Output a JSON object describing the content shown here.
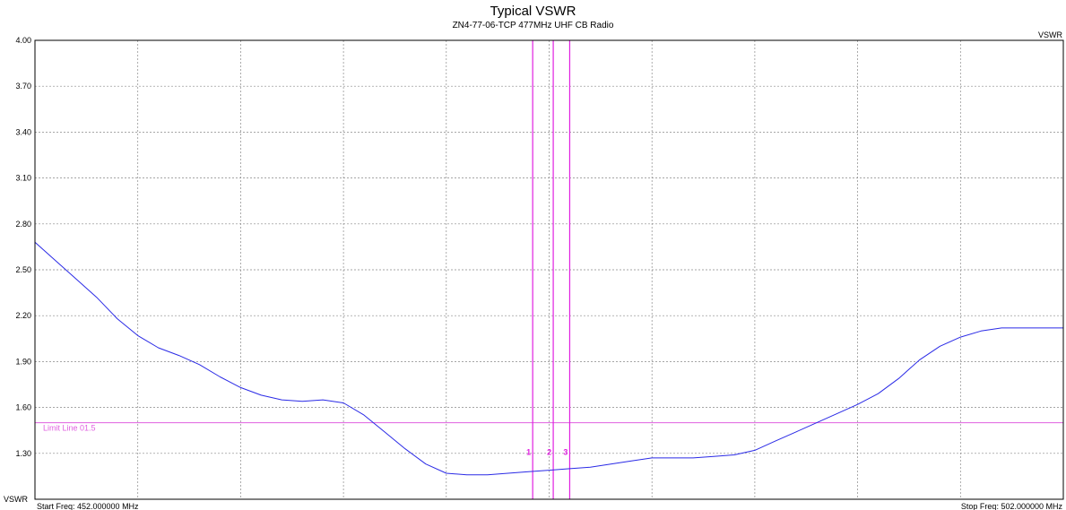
{
  "chart_data": {
    "type": "line",
    "title": "Typical VSWR",
    "subtitle": "ZN4-77-06-TCP 477MHz UHF CB Radio",
    "ylabel_top": "VSWR",
    "ylabel_bottom": "VSWR",
    "start_freq_label": "Start Freq: 452.000000 MHz",
    "stop_freq_label": "Stop Freq: 502.000000 MHz",
    "xlim": [
      452,
      502
    ],
    "ylim": [
      1.0,
      4.0
    ],
    "yticks": [
      "4.00",
      "3.70",
      "3.40",
      "3.10",
      "2.80",
      "2.50",
      "2.20",
      "1.90",
      "1.60",
      "1.30"
    ],
    "ytick_values": [
      4.0,
      3.7,
      3.4,
      3.1,
      2.8,
      2.5,
      2.2,
      1.9,
      1.6,
      1.3
    ],
    "x_gridlines": [
      457,
      462,
      467,
      472,
      477,
      482,
      487,
      492,
      497
    ],
    "grid": true,
    "colors": {
      "trace": "#2a2ae6",
      "marker": "#e020e0",
      "limit": "#e060e0",
      "grid": "#888888"
    },
    "series": [
      {
        "x": [
          452,
          453,
          454,
          455,
          456,
          457,
          458,
          459,
          460,
          461,
          462,
          463,
          464,
          465,
          466,
          467,
          468,
          469,
          470,
          471,
          472,
          473,
          474,
          475,
          476,
          477,
          478,
          479,
          480,
          481,
          482,
          483,
          484,
          485,
          486,
          487,
          488,
          489,
          490,
          491,
          492,
          493,
          494,
          495,
          496,
          497,
          498,
          499,
          500,
          501,
          502
        ],
        "y": [
          2.68,
          2.56,
          2.44,
          2.32,
          2.18,
          2.07,
          1.99,
          1.94,
          1.88,
          1.8,
          1.73,
          1.68,
          1.65,
          1.64,
          1.65,
          1.63,
          1.55,
          1.44,
          1.33,
          1.23,
          1.17,
          1.16,
          1.16,
          1.17,
          1.18,
          1.19,
          1.2,
          1.21,
          1.23,
          1.25,
          1.27,
          1.27,
          1.27,
          1.28,
          1.29,
          1.32,
          1.38,
          1.44,
          1.5,
          1.56,
          1.62,
          1.69,
          1.79,
          1.91,
          2.0,
          2.06,
          2.1,
          2.12,
          2.12,
          2.12,
          2.12
        ]
      }
    ],
    "markers": [
      {
        "label": "1",
        "x": 476.2
      },
      {
        "label": "2",
        "x": 477.2
      },
      {
        "label": "3",
        "x": 478.0
      }
    ],
    "limit_line": {
      "label": "Limit Line 01.5",
      "value": 1.5
    }
  }
}
